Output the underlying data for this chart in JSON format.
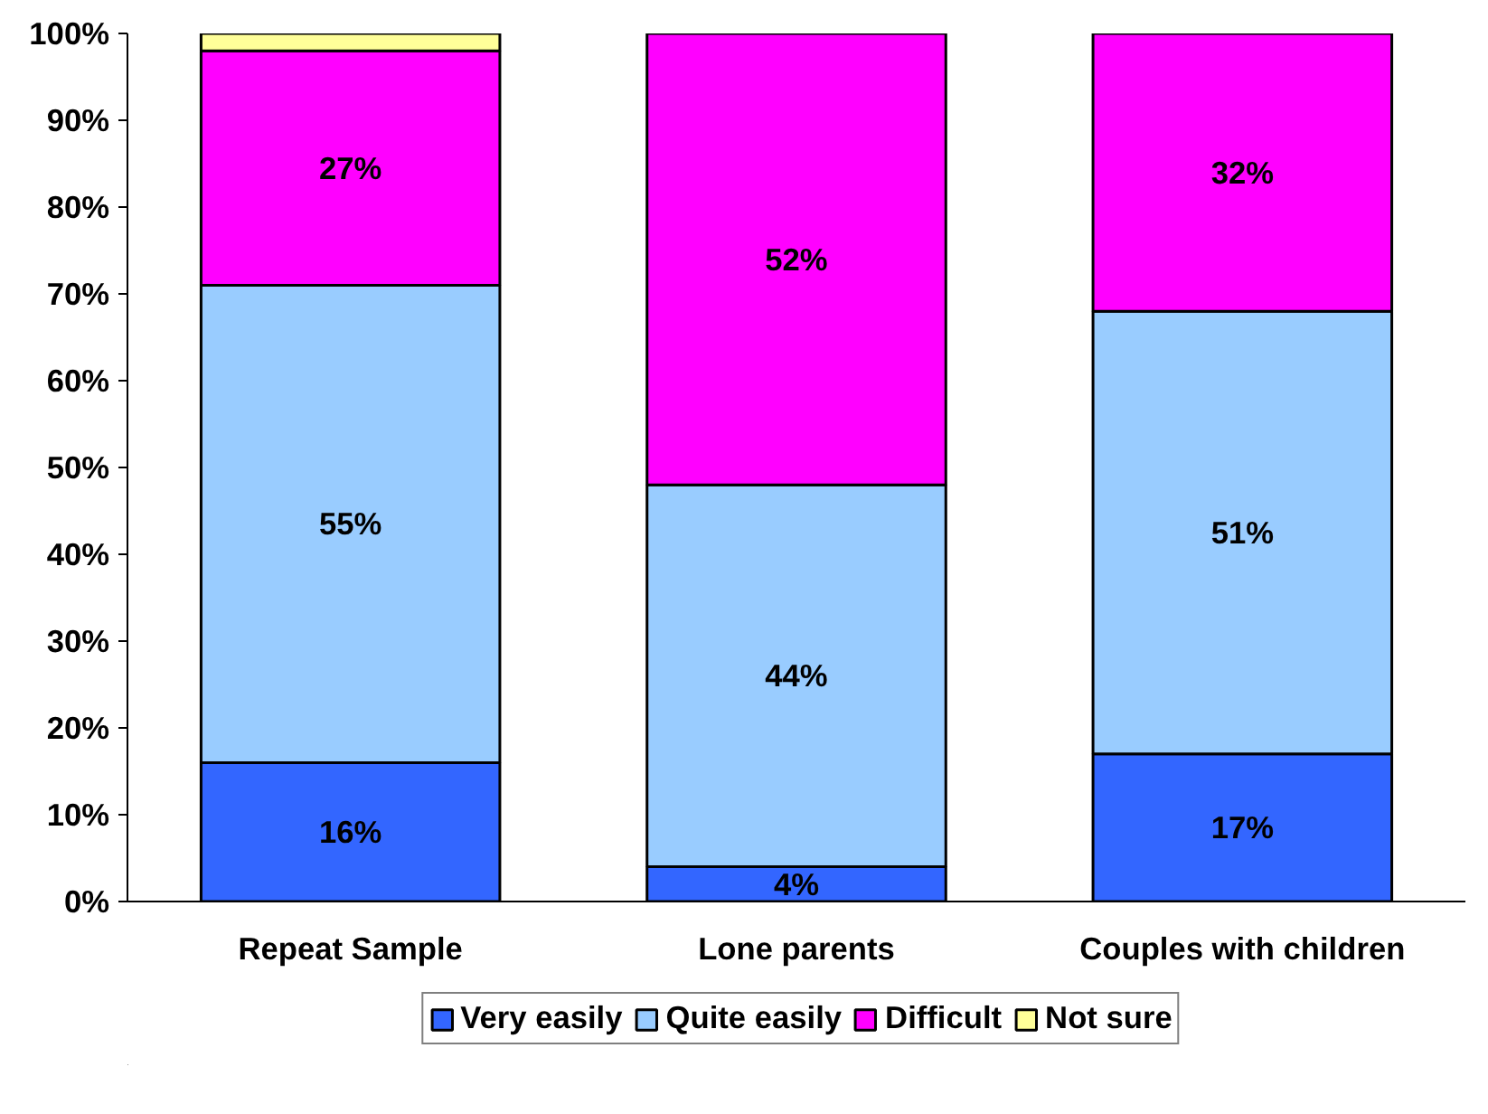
{
  "chart_data": {
    "type": "bar",
    "stacked": true,
    "categories": [
      "Repeat Sample",
      "Lone parents",
      "Couples with children"
    ],
    "series": [
      {
        "name": "Very easily",
        "color": "#3366ff",
        "values": [
          16,
          4,
          17
        ],
        "value_labels": [
          "16%",
          "4%",
          "17%"
        ]
      },
      {
        "name": "Quite easily",
        "color": "#99ccff",
        "values": [
          55,
          44,
          51
        ],
        "value_labels": [
          "55%",
          "44%",
          "51%"
        ]
      },
      {
        "name": "Difficult",
        "color": "#ff00ff",
        "values": [
          27,
          52,
          32
        ],
        "value_labels": [
          "27%",
          "52%",
          "32%"
        ]
      },
      {
        "name": "Not sure",
        "color": "#ffff99",
        "values": [
          2,
          null,
          null
        ],
        "value_labels": [
          null,
          null,
          null
        ]
      }
    ],
    "ylim": [
      0,
      100
    ],
    "yticks": [
      {
        "value": 0,
        "label": "0%"
      },
      {
        "value": 10,
        "label": "10%"
      },
      {
        "value": 20,
        "label": "20%"
      },
      {
        "value": 30,
        "label": "30%"
      },
      {
        "value": 40,
        "label": "40%"
      },
      {
        "value": 50,
        "label": "50%"
      },
      {
        "value": 60,
        "label": "60%"
      },
      {
        "value": 70,
        "label": "70%"
      },
      {
        "value": 80,
        "label": "80%"
      },
      {
        "value": 90,
        "label": "90%"
      },
      {
        "value": 100,
        "label": "100%"
      }
    ],
    "grid": false,
    "legend": "bottom"
  }
}
